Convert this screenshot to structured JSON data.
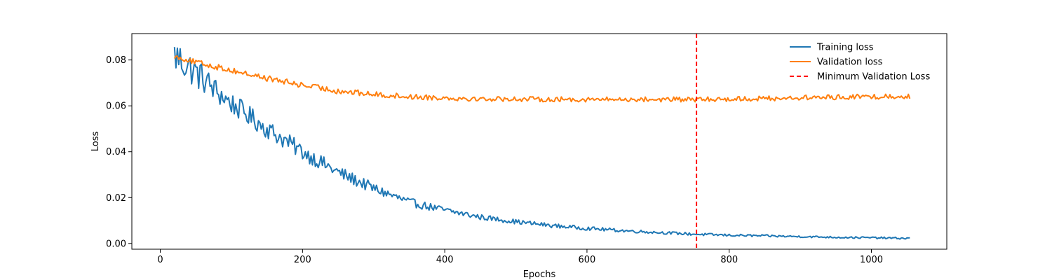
{
  "chart_data": {
    "type": "line",
    "title": "",
    "xlabel": "Epochs",
    "ylabel": "Loss",
    "xlim": [
      -40,
      1106
    ],
    "ylim": [
      -0.0025,
      0.0915
    ],
    "xticks": [
      0,
      200,
      400,
      600,
      800,
      1000
    ],
    "yticks": [
      0.0,
      0.02,
      0.04,
      0.06,
      0.08
    ],
    "xtick_labels": [
      "0",
      "200",
      "400",
      "600",
      "800",
      "1000"
    ],
    "ytick_labels": [
      "0.00",
      "0.02",
      "0.04",
      "0.06",
      "0.08"
    ],
    "grid": false,
    "legend_position": "top-right",
    "min_epoch": 754,
    "series": [
      {
        "name": "Training loss",
        "color": "#1f77b4",
        "x_start": 20,
        "x_end": 1054,
        "anchors_x": [
          20,
          40,
          60,
          80,
          100,
          150,
          200,
          250,
          300,
          350,
          400,
          450,
          500,
          550,
          600,
          650,
          700,
          754,
          800,
          850,
          900,
          950,
          1000,
          1054
        ],
        "anchors_y": [
          0.082,
          0.077,
          0.072,
          0.066,
          0.061,
          0.05,
          0.04,
          0.031,
          0.024,
          0.018,
          0.0145,
          0.0115,
          0.0095,
          0.0078,
          0.0066,
          0.0056,
          0.0048,
          0.004,
          0.0036,
          0.0033,
          0.003,
          0.0027,
          0.0025,
          0.0022
        ],
        "noise_amplitude": [
          0.0085,
          0.0075,
          0.0065,
          0.0055,
          0.0048,
          0.0042,
          0.0036,
          0.003,
          0.0024,
          0.0019,
          0.0015,
          0.0012,
          0.001,
          0.0009,
          0.0008,
          0.0007,
          0.0006,
          0.0006,
          0.0005,
          0.0005,
          0.0004,
          0.0004,
          0.0004,
          0.0004
        ]
      },
      {
        "name": "Validation loss",
        "color": "#ff7f0e",
        "x_start": 20,
        "x_end": 1054,
        "anchors_x": [
          20,
          50,
          100,
          150,
          200,
          250,
          300,
          350,
          400,
          450,
          500,
          550,
          600,
          650,
          700,
          754,
          800,
          850,
          900,
          950,
          1000,
          1054
        ],
        "anchors_y": [
          0.0815,
          0.079,
          0.0755,
          0.072,
          0.069,
          0.0665,
          0.065,
          0.064,
          0.0635,
          0.063,
          0.063,
          0.0628,
          0.0628,
          0.0628,
          0.0628,
          0.0627,
          0.063,
          0.0632,
          0.0635,
          0.0638,
          0.064,
          0.0642
        ],
        "noise_amplitude": [
          0.0009,
          0.0012,
          0.0013,
          0.0013,
          0.0013,
          0.0013,
          0.0012,
          0.0012,
          0.0011,
          0.0011,
          0.0011,
          0.0011,
          0.0011,
          0.0011,
          0.0011,
          0.0011,
          0.0011,
          0.0011,
          0.0011,
          0.0011,
          0.0011,
          0.0011
        ]
      }
    ],
    "reference_lines": [
      {
        "name": "Minimum Validation Loss",
        "orientation": "vertical",
        "x": 754,
        "color": "#ff0000",
        "style": "dashed"
      }
    ]
  }
}
